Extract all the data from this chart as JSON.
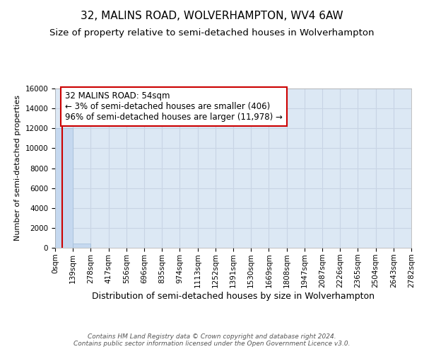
{
  "title_line1": "32, MALINS ROAD, WOLVERHAMPTON, WV4 6AW",
  "title_line2": "Size of property relative to semi-detached houses in Wolverhampton",
  "xlabel": "Distribution of semi-detached houses by size in Wolverhampton",
  "ylabel": "Number of semi-detached properties",
  "footer_line1": "Contains HM Land Registry data © Crown copyright and database right 2024.",
  "footer_line2": "Contains public sector information licensed under the Open Government Licence v3.0.",
  "annotation_line1": "32 MALINS ROAD: 54sqm",
  "annotation_line2": "← 3% of semi-detached houses are smaller (406)",
  "annotation_line3": "96% of semi-detached houses are larger (11,978) →",
  "property_size_sqm": 54,
  "bar_color": "#c5d8ef",
  "bar_edge_color": "#a0bcd8",
  "property_line_color": "#cc0000",
  "annotation_box_edgecolor": "#cc0000",
  "grid_color": "#c8d4e4",
  "background_color": "#dce8f4",
  "ylim": [
    0,
    16000
  ],
  "yticks": [
    0,
    2000,
    4000,
    6000,
    8000,
    10000,
    12000,
    14000,
    16000
  ],
  "bin_edges": [
    0,
    139,
    278,
    417,
    556,
    696,
    835,
    974,
    1113,
    1252,
    1391,
    1530,
    1669,
    1808,
    1947,
    2087,
    2226,
    2365,
    2504,
    2643,
    2782
  ],
  "bin_labels": [
    "0sqm",
    "139sqm",
    "278sqm",
    "417sqm",
    "556sqm",
    "696sqm",
    "835sqm",
    "974sqm",
    "1113sqm",
    "1252sqm",
    "1391sqm",
    "1530sqm",
    "1669sqm",
    "1808sqm",
    "1947sqm",
    "2087sqm",
    "2226sqm",
    "2365sqm",
    "2504sqm",
    "2643sqm",
    "2782sqm"
  ],
  "bar_heights": [
    12000,
    450,
    30,
    15,
    10,
    5,
    3,
    2,
    2,
    1,
    1,
    1,
    0,
    0,
    0,
    0,
    0,
    0,
    0,
    0
  ],
  "title_fontsize": 11,
  "subtitle_fontsize": 9.5,
  "ylabel_fontsize": 8,
  "xlabel_fontsize": 9,
  "tick_fontsize": 7.5,
  "annotation_fontsize": 8.5,
  "footer_fontsize": 6.5
}
